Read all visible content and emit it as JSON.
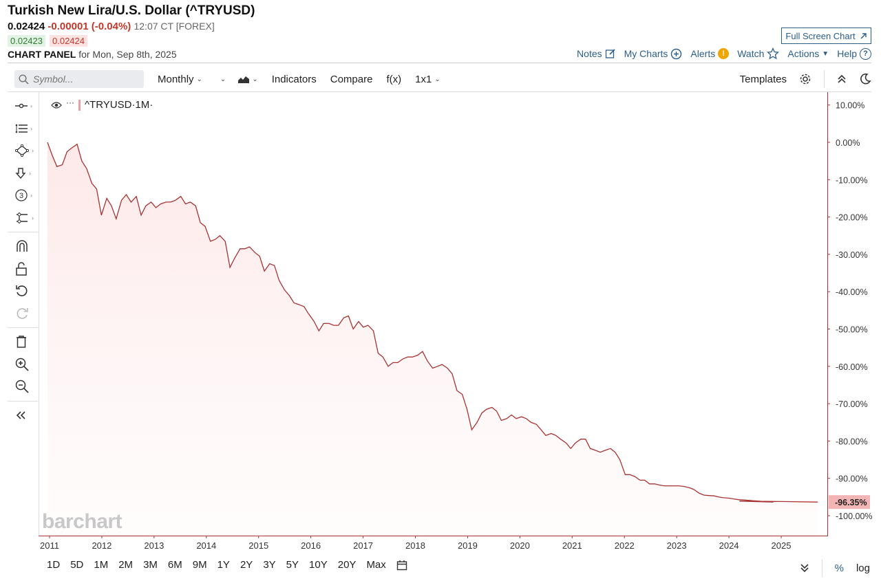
{
  "header": {
    "title": "Turkish New Lira/U.S. Dollar (^TRYUSD)",
    "last": "0.02424",
    "change": "-0.00001 (-0.04%)",
    "time": "12:07 CT [FOREX]",
    "bid": "0.02423",
    "ask": "0.02424",
    "panel_label": "CHART PANEL",
    "panel_date": "for Mon, Sep 8th, 2025",
    "fullscreen_label": "Full Screen Chart"
  },
  "topnav": {
    "notes": "Notes",
    "mycharts": "My Charts",
    "alerts": "Alerts",
    "watch": "Watch",
    "actions": "Actions",
    "help": "Help"
  },
  "toolbar": {
    "search_placeholder": "Symbol...",
    "interval": "Monthly",
    "indicators": "Indicators",
    "compare": "Compare",
    "fx": "f(x)",
    "layout": "1x1",
    "templates": "Templates"
  },
  "sidebar_items": [
    {
      "icon": "crosshair-icon"
    },
    {
      "icon": "list-lines-icon"
    },
    {
      "icon": "shapes-icon"
    },
    {
      "icon": "arrow-down-icon"
    },
    {
      "icon": "number-3-icon",
      "label": "3"
    },
    {
      "icon": "measure-icon"
    }
  ],
  "legend": {
    "symbol": "^TRYUSD",
    "period": "·1M·",
    "more": "···"
  },
  "watermark": "barchart",
  "rangebar": {
    "ranges": [
      "1D",
      "5D",
      "1M",
      "2M",
      "3M",
      "6M",
      "9M",
      "1Y",
      "2Y",
      "3Y",
      "5Y",
      "10Y",
      "20Y",
      "Max"
    ],
    "pct_label": "%",
    "log_label": "log"
  },
  "colors": {
    "line": "#a83232",
    "fill_top": "#fde8e8",
    "accent": "#2b5d8a",
    "last_badge": "#f2b4b4"
  },
  "chart_data": {
    "type": "area",
    "title": "",
    "xlabel": "",
    "ylabel": "",
    "x_ticks": [
      "2011",
      "2012",
      "2013",
      "2014",
      "2015",
      "2016",
      "2017",
      "2018",
      "2019",
      "2020",
      "2021",
      "2022",
      "2023",
      "2024",
      "2025"
    ],
    "y_ticks": [
      "10.00%",
      "0.00%",
      "-10.00%",
      "-20.00%",
      "-30.00%",
      "-40.00%",
      "-50.00%",
      "-60.00%",
      "-70.00%",
      "-80.00%",
      "-90.00%",
      "-100.00%"
    ],
    "ylim": [
      -103,
      12
    ],
    "xlim": [
      2010.95,
      2026.0
    ],
    "last_value_label": "-96.35%",
    "last_value": -96.35,
    "series": [
      {
        "values": [
          [
            2010.96,
            0.0
          ],
          [
            2011.04,
            -3.5
          ],
          [
            2011.12,
            -6.5
          ],
          [
            2011.21,
            -6.0
          ],
          [
            2011.29,
            -2.5
          ],
          [
            2011.37,
            -1.5
          ],
          [
            2011.46,
            -0.5
          ],
          [
            2011.54,
            -5.0
          ],
          [
            2011.62,
            -7.0
          ],
          [
            2011.71,
            -11.0
          ],
          [
            2011.79,
            -12.5
          ],
          [
            2011.87,
            -19.5
          ],
          [
            2011.96,
            -15.0
          ],
          [
            2012.04,
            -17.0
          ],
          [
            2012.12,
            -20.5
          ],
          [
            2012.21,
            -15.5
          ],
          [
            2012.29,
            -14.0
          ],
          [
            2012.37,
            -16.0
          ],
          [
            2012.46,
            -14.5
          ],
          [
            2012.54,
            -19.5
          ],
          [
            2012.62,
            -17.0
          ],
          [
            2012.71,
            -16.0
          ],
          [
            2012.79,
            -17.5
          ],
          [
            2012.87,
            -16.5
          ],
          [
            2012.96,
            -16.0
          ],
          [
            2013.04,
            -16.0
          ],
          [
            2013.12,
            -15.5
          ],
          [
            2013.21,
            -14.5
          ],
          [
            2013.29,
            -16.5
          ],
          [
            2013.37,
            -16.0
          ],
          [
            2013.46,
            -17.0
          ],
          [
            2013.54,
            -21.5
          ],
          [
            2013.62,
            -22.5
          ],
          [
            2013.71,
            -26.5
          ],
          [
            2013.79,
            -26.0
          ],
          [
            2013.87,
            -25.0
          ],
          [
            2013.96,
            -26.5
          ],
          [
            2014.04,
            -33.5
          ],
          [
            2014.12,
            -31.0
          ],
          [
            2014.21,
            -28.5
          ],
          [
            2014.29,
            -28.5
          ],
          [
            2014.37,
            -28.0
          ],
          [
            2014.46,
            -29.5
          ],
          [
            2014.54,
            -30.5
          ],
          [
            2014.62,
            -34.5
          ],
          [
            2014.71,
            -32.5
          ],
          [
            2014.79,
            -33.0
          ],
          [
            2014.87,
            -37.0
          ],
          [
            2014.96,
            -39.5
          ],
          [
            2015.04,
            -41.0
          ],
          [
            2015.12,
            -43.0
          ],
          [
            2015.21,
            -43.5
          ],
          [
            2015.29,
            -44.0
          ],
          [
            2015.37,
            -46.0
          ],
          [
            2015.46,
            -48.0
          ],
          [
            2015.54,
            -50.5
          ],
          [
            2015.62,
            -48.5
          ],
          [
            2015.71,
            -48.5
          ],
          [
            2015.79,
            -49.0
          ],
          [
            2015.87,
            -49.0
          ],
          [
            2015.96,
            -47.0
          ],
          [
            2016.04,
            -46.5
          ],
          [
            2016.12,
            -50.0
          ],
          [
            2016.21,
            -48.0
          ],
          [
            2016.29,
            -49.5
          ],
          [
            2016.37,
            -49.0
          ],
          [
            2016.46,
            -50.5
          ],
          [
            2016.54,
            -56.5
          ],
          [
            2016.62,
            -57.5
          ],
          [
            2016.71,
            -60.0
          ],
          [
            2016.79,
            -59.0
          ],
          [
            2016.87,
            -59.0
          ],
          [
            2016.96,
            -58.0
          ],
          [
            2017.04,
            -57.5
          ],
          [
            2017.12,
            -57.5
          ],
          [
            2017.21,
            -57.0
          ],
          [
            2017.29,
            -56.0
          ],
          [
            2017.37,
            -58.5
          ],
          [
            2017.46,
            -60.5
          ],
          [
            2017.54,
            -60.0
          ],
          [
            2017.62,
            -59.5
          ],
          [
            2017.71,
            -60.5
          ],
          [
            2017.79,
            -62.0
          ],
          [
            2017.87,
            -66.5
          ],
          [
            2017.96,
            -67.5
          ],
          [
            2018.04,
            -71.5
          ],
          [
            2018.12,
            -77.0
          ],
          [
            2018.21,
            -75.0
          ],
          [
            2018.29,
            -72.5
          ],
          [
            2018.37,
            -71.5
          ],
          [
            2018.46,
            -71.0
          ],
          [
            2018.54,
            -72.0
          ],
          [
            2018.62,
            -74.5
          ],
          [
            2018.71,
            -74.0
          ],
          [
            2018.79,
            -73.0
          ],
          [
            2018.87,
            -74.0
          ],
          [
            2018.96,
            -73.5
          ],
          [
            2019.04,
            -74.0
          ],
          [
            2019.12,
            -75.0
          ],
          [
            2019.21,
            -75.5
          ],
          [
            2019.29,
            -77.0
          ],
          [
            2019.37,
            -78.5
          ],
          [
            2019.46,
            -78.0
          ],
          [
            2019.54,
            -78.5
          ],
          [
            2019.62,
            -79.5
          ],
          [
            2019.71,
            -80.5
          ],
          [
            2019.79,
            -82.0
          ],
          [
            2019.87,
            -80.5
          ],
          [
            2019.96,
            -79.5
          ],
          [
            2020.04,
            -79.5
          ],
          [
            2020.12,
            -82.0
          ],
          [
            2020.21,
            -82.5
          ],
          [
            2020.29,
            -83.0
          ],
          [
            2020.37,
            -82.5
          ],
          [
            2020.46,
            -82.0
          ],
          [
            2020.54,
            -83.0
          ],
          [
            2020.62,
            -85.0
          ],
          [
            2020.71,
            -89.0
          ],
          [
            2020.79,
            -89.0
          ],
          [
            2020.87,
            -89.5
          ],
          [
            2020.96,
            -90.5
          ],
          [
            2021.04,
            -90.5
          ],
          [
            2021.12,
            -91.5
          ],
          [
            2021.21,
            -91.5
          ],
          [
            2021.29,
            -91.8
          ],
          [
            2021.37,
            -92.0
          ],
          [
            2021.46,
            -92.0
          ],
          [
            2021.54,
            -92.0
          ],
          [
            2021.62,
            -92.0
          ],
          [
            2021.71,
            -92.2
          ],
          [
            2021.79,
            -92.5
          ],
          [
            2021.87,
            -93.0
          ],
          [
            2021.96,
            -94.0
          ],
          [
            2022.04,
            -94.5
          ],
          [
            2022.12,
            -94.6
          ],
          [
            2022.21,
            -94.7
          ],
          [
            2022.29,
            -95.0
          ],
          [
            2022.37,
            -95.2
          ],
          [
            2022.46,
            -95.3
          ],
          [
            2022.54,
            -95.5
          ],
          [
            2022.62,
            -95.7
          ],
          [
            2022.71,
            -95.8
          ],
          [
            2022.79,
            -95.9
          ],
          [
            2022.87,
            -96.0
          ],
          [
            2022.96,
            -96.1
          ],
          [
            2023.04,
            -96.2
          ],
          [
            2023.12,
            -96.3
          ],
          [
            2023.21,
            -96.35
          ]
        ]
      }
    ]
  }
}
